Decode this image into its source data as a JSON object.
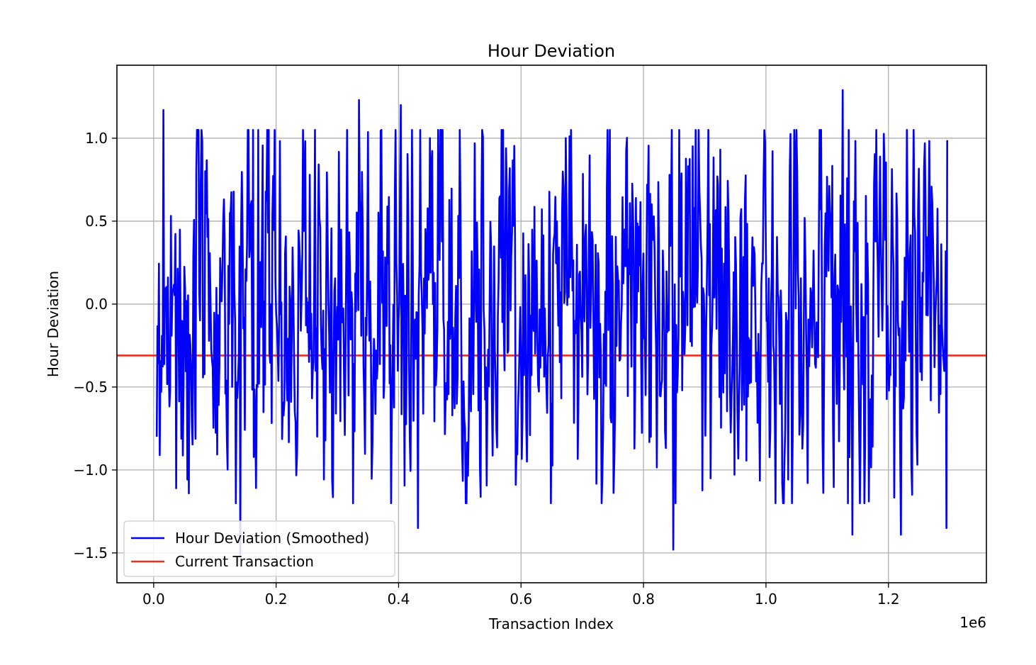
{
  "chart_data": {
    "type": "line",
    "title": "Hour Deviation",
    "xlabel": "Transaction Index",
    "ylabel": "Hour Deviation",
    "x_offset_label": "1e6",
    "xlim": [
      -0.06,
      1.36
    ],
    "ylim": [
      -1.68,
      1.44
    ],
    "x_ticks": [
      0.0,
      0.2,
      0.4,
      0.6,
      0.8,
      1.0,
      1.2
    ],
    "x_tick_labels": [
      "0.0",
      "0.2",
      "0.4",
      "0.6",
      "0.8",
      "1.0",
      "1.2"
    ],
    "y_ticks": [
      -1.5,
      -1.0,
      -0.5,
      0.0,
      0.5,
      1.0
    ],
    "y_tick_labels": [
      "−1.5",
      "−1.0",
      "−0.5",
      "0.0",
      "0.5",
      "1.0"
    ],
    "grid": true,
    "legend_position": "lower-left",
    "series": [
      {
        "name": "Hour Deviation (Smoothed)",
        "color": "#0000ff",
        "x_range": [
          0.005,
          1.296
        ],
        "points": 1060,
        "landmarks": [
          {
            "x": 0.005,
            "y": -0.8
          },
          {
            "x": 0.016,
            "y": 1.17
          },
          {
            "x": 0.037,
            "y": -1.11
          },
          {
            "x": 0.058,
            "y": -1.14
          },
          {
            "x": 0.141,
            "y": -1.51
          },
          {
            "x": 0.335,
            "y": 1.23
          },
          {
            "x": 0.404,
            "y": 1.2
          },
          {
            "x": 0.432,
            "y": -1.35
          },
          {
            "x": 0.849,
            "y": -1.48
          },
          {
            "x": 1.125,
            "y": 1.29
          },
          {
            "x": 1.141,
            "y": -1.39
          },
          {
            "x": 1.22,
            "y": -1.39
          },
          {
            "x": 1.295,
            "y": -1.35
          }
        ],
        "mean": 0.0,
        "spread": 0.55
      },
      {
        "name": "Current Transaction",
        "color": "#e8311f",
        "y": -0.31
      }
    ]
  }
}
